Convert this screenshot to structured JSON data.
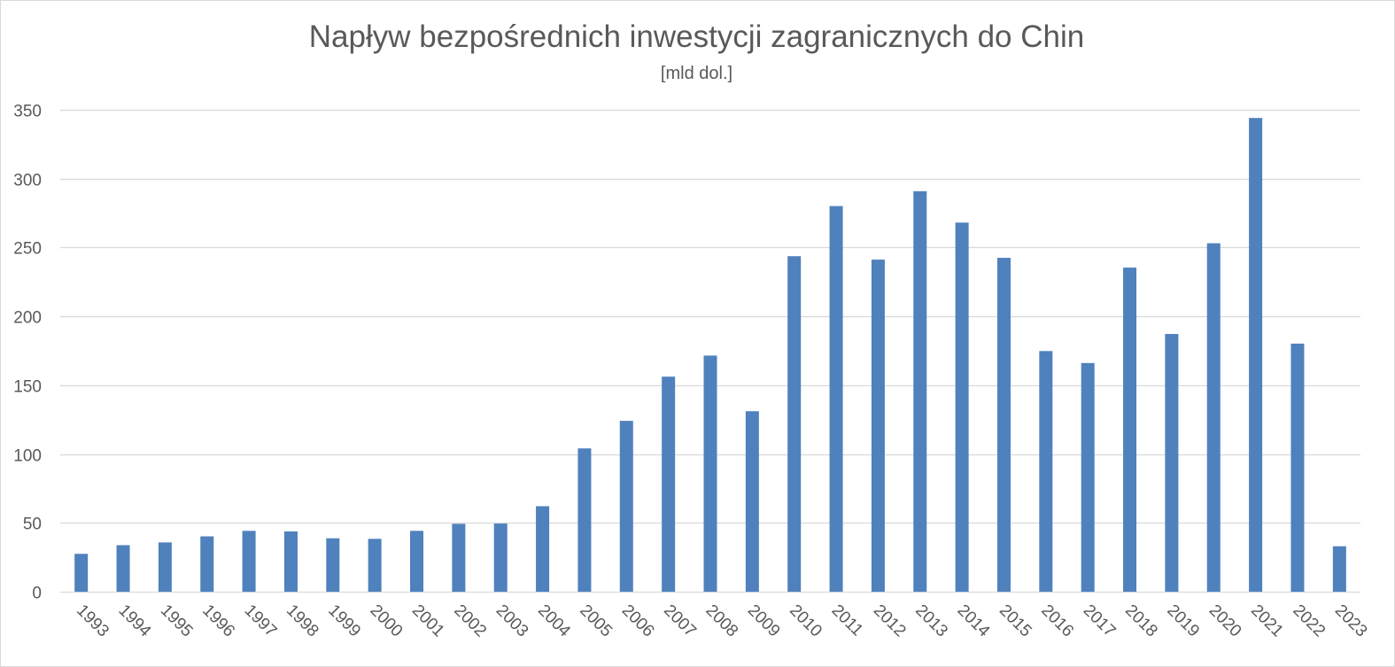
{
  "chart_data": {
    "type": "bar",
    "title": "Napływ bezpośrednich inwestycji zagranicznych do Chin",
    "subtitle": "[mld dol.]",
    "xlabel": "",
    "ylabel": "",
    "categories": [
      "1993",
      "1994",
      "1995",
      "1996",
      "1997",
      "1998",
      "1999",
      "2000",
      "2001",
      "2002",
      "2003",
      "2004",
      "2005",
      "2006",
      "2007",
      "2008",
      "2009",
      "2010",
      "2011",
      "2012",
      "2013",
      "2014",
      "2015",
      "2016",
      "2017",
      "2018",
      "2019",
      "2020",
      "2021",
      "2022",
      "2023"
    ],
    "values": [
      27.5,
      33.8,
      35.8,
      40.2,
      44.2,
      43.8,
      38.8,
      38.4,
      44.2,
      49.3,
      49.5,
      62.1,
      104.1,
      124.1,
      156.2,
      171.5,
      131.1,
      243.7,
      280.1,
      241.2,
      290.9,
      268.1,
      242.5,
      174.8,
      166.1,
      235.4,
      187.2,
      253.1,
      344.1,
      180.2,
      33.0
    ],
    "ylim": [
      0,
      350
    ],
    "yticks": [
      0,
      50,
      100,
      150,
      200,
      250,
      300,
      350
    ],
    "grid": true,
    "legend": "none",
    "bar_color": "#4f81bd",
    "grid_color": "#d9d9d9",
    "text_color": "#595959"
  }
}
